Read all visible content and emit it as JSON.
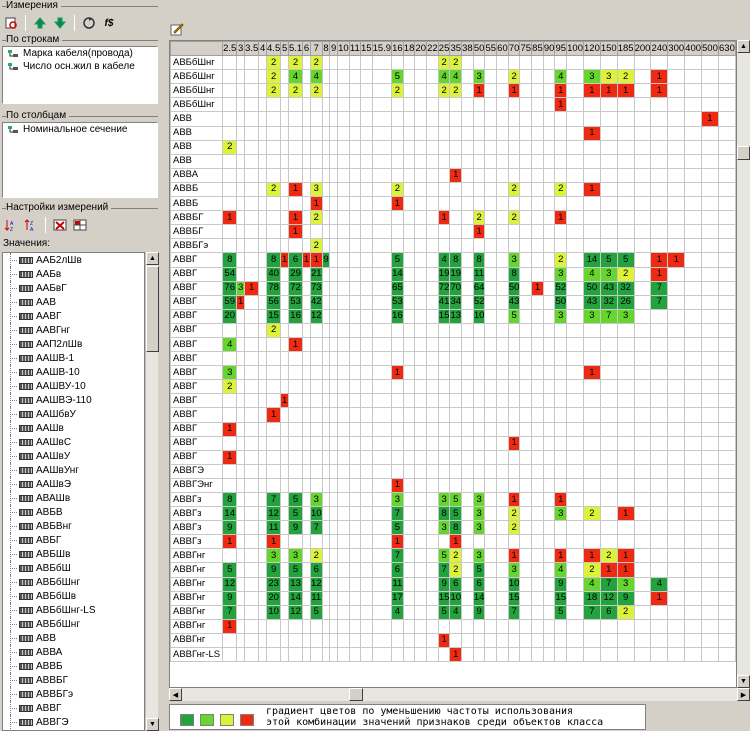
{
  "panels": {
    "dimensions": "Измерения",
    "rows": "По строкам",
    "columns": "По столбцам",
    "settings": "Настройки измерений",
    "values": "Значения:"
  },
  "rows_items": [
    "Марка кабеля(провода)",
    "Число осн.жил в кабеле"
  ],
  "columns_items": [
    "Номинальное сечение"
  ],
  "values_items": [
    "ААБ2лШв",
    "ААБв",
    "ААБвГ",
    "ААВ",
    "ААВГ",
    "ААВГнг",
    "ААП2лШв",
    "ААШВ-1",
    "ААШВ-10",
    "ААШВУ-10",
    "ААШВЭ-110",
    "ААШбвУ",
    "ААШв",
    "ААШвС",
    "ААШвУ",
    "ААШвУнг",
    "ААШвЭ",
    "АВАШв",
    "АВБВ",
    "АВБВнг",
    "АВБГ",
    "АВБШв",
    "АВБбШ",
    "АВБбШнг",
    "АВБбШв",
    "АВБбШнг-LS",
    "АВБбШнг",
    "АВВ",
    "АВВА",
    "АВВБ",
    "АВВБГ",
    "АВВБГэ",
    "АВВГ",
    "АВВГЭ"
  ],
  "grid": {
    "columns": [
      "2.5",
      "3",
      "3.5",
      "4",
      "4.5",
      "5",
      "5.1",
      "6",
      "7",
      "8",
      "9",
      "10",
      "11",
      "15",
      "15.9",
      "16",
      "18",
      "20",
      "22",
      "25",
      "35",
      "38",
      "50",
      "55",
      "60",
      "70",
      "75",
      "85",
      "90",
      "95",
      "100",
      "120",
      "150",
      "185",
      "200",
      "240",
      "300",
      "400",
      "500",
      "630"
    ],
    "rows": [
      {
        "label": "АВБбШнг",
        "cells": {
          "4": "2:y",
          "6": "2:y",
          "8": "2:y",
          "19": "2:y",
          "20": "2:y"
        }
      },
      {
        "label": "АВБбШнг",
        "cells": {
          "4": "2:y",
          "6": "4:l",
          "8": "4:l",
          "15": "5:l",
          "19": "4:l",
          "20": "4:l",
          "22": "3:l",
          "25": "2:y",
          "29": "4:l",
          "31": "3:l",
          "32": "3:y",
          "33": "2:y",
          "35": "1:r"
        }
      },
      {
        "label": "АВБбШнг",
        "cells": {
          "4": "2:y",
          "6": "2:y",
          "8": "2:y",
          "15": "2:y",
          "19": "2:y",
          "20": "2:y",
          "22": "1:r",
          "25": "1:r",
          "29": "1:r",
          "31": "1:r",
          "32": "1:r",
          "33": "1:r",
          "35": "1:r"
        }
      },
      {
        "label": "АВБбШнг",
        "cells": {
          "29": "1:r"
        }
      },
      {
        "label": "АВВ",
        "cells": {
          "38": "1:r"
        }
      },
      {
        "label": "АВВ",
        "cells": {
          "31": "1:r"
        }
      },
      {
        "label": "АВВ",
        "cells": {
          "0": "2:y"
        }
      },
      {
        "label": "АВВ",
        "cells": {}
      },
      {
        "label": "АВВА",
        "cells": {
          "20": "1:r"
        }
      },
      {
        "label": "АВВБ",
        "cells": {
          "4": "2:y",
          "6": "1:r",
          "8": "3:y",
          "15": "2:y",
          "25": "2:y",
          "29": "2:y",
          "31": "1:r"
        }
      },
      {
        "label": "АВВБ",
        "cells": {
          "8": "1:r",
          "15": "1:r"
        }
      },
      {
        "label": "АВВБГ",
        "cells": {
          "0": "1:r",
          "6": "1:r",
          "8": "2:y",
          "19": "1:r",
          "22": "2:y",
          "25": "2:y",
          "29": "1:r"
        }
      },
      {
        "label": "АВВБГ",
        "cells": {
          "6": "1:r",
          "22": "1:r"
        }
      },
      {
        "label": "АВВБГэ",
        "cells": {
          "8": "2:y"
        }
      },
      {
        "label": "АВВГ",
        "cells": {
          "0": "8:g",
          "4": "8:g",
          "5": "1:r",
          "6": "6:g",
          "7": "1:r",
          "8": "1:r",
          "9": "9:g",
          "15": "5:g",
          "19": "4:g",
          "20": "8:g",
          "22": "8:g",
          "25": "3:l",
          "29": "2:y",
          "31": "14:g",
          "32": "5:g",
          "33": "5:g",
          "35": "1:r",
          "36": "1:r"
        }
      },
      {
        "label": "АВВГ",
        "cells": {
          "0": "54:g",
          "4": "40:g",
          "6": "29:g",
          "8": "21:g",
          "15": "14:g",
          "19": "19:g",
          "20": "19:g",
          "22": "11:g",
          "25": "8:g",
          "29": "3:l",
          "31": "4:l",
          "32": "3:l",
          "33": "2:y",
          "35": "1:r"
        }
      },
      {
        "label": "АВВГ",
        "cells": {
          "0": "76:g",
          "1": "3:l",
          "2": "1:r",
          "4": "78:g",
          "6": "72:g",
          "8": "73:g",
          "15": "65:g",
          "19": "72:g",
          "20": "70:g",
          "22": "64:g",
          "25": "50:g",
          "27": "1:r",
          "29": "52:g",
          "31": "50:g",
          "32": "43:g",
          "33": "32:g",
          "35": "7:g"
        }
      },
      {
        "label": "АВВГ",
        "cells": {
          "0": "59:g",
          "1": "1:r",
          "4": "56:g",
          "6": "53:g",
          "8": "42:g",
          "15": "53:g",
          "19": "41:g",
          "20": "34:g",
          "22": "52:g",
          "25": "43:g",
          "29": "50:g",
          "31": "43:g",
          "32": "32:g",
          "33": "26:g",
          "35": "7:g"
        }
      },
      {
        "label": "АВВГ",
        "cells": {
          "0": "20:g",
          "4": "15:g",
          "6": "16:g",
          "8": "12:g",
          "15": "16:g",
          "19": "15:g",
          "20": "13:g",
          "22": "10:g",
          "25": "5:l",
          "29": "3:l",
          "31": "3:l",
          "32": "7:l",
          "33": "3:l"
        }
      },
      {
        "label": "АВВГ",
        "cells": {
          "4": "2:y"
        }
      },
      {
        "label": "АВВГ",
        "cells": {
          "0": "4:l",
          "6": "1:r"
        }
      },
      {
        "label": "АВВГ",
        "cells": {}
      },
      {
        "label": "АВВГ",
        "cells": {
          "0": "3:l",
          "15": "1:r",
          "31": "1:r"
        }
      },
      {
        "label": "АВВГ",
        "cells": {
          "0": "2:y"
        }
      },
      {
        "label": "АВВГ",
        "cells": {
          "5": "1:r"
        }
      },
      {
        "label": "АВВГ",
        "cells": {
          "4": "1:r"
        }
      },
      {
        "label": "АВВГ",
        "cells": {
          "0": "1:r"
        }
      },
      {
        "label": "АВВГ",
        "cells": {
          "25": "1:r"
        }
      },
      {
        "label": "АВВГ",
        "cells": {
          "0": "1:r"
        }
      },
      {
        "label": "АВВГЭ",
        "cells": {}
      },
      {
        "label": "АВВГЭнг",
        "cells": {
          "15": "1:r"
        }
      },
      {
        "label": "АВВГз",
        "cells": {
          "0": "8:g",
          "4": "7:g",
          "6": "5:g",
          "8": "3:l",
          "15": "3:l",
          "19": "3:l",
          "20": "5:l",
          "22": "3:l",
          "25": "1:r",
          "29": "1:r"
        }
      },
      {
        "label": "АВВГз",
        "cells": {
          "0": "14:g",
          "4": "12:g",
          "6": "5:g",
          "8": "10:g",
          "15": "7:g",
          "19": "8:g",
          "20": "5:g",
          "22": "3:l",
          "25": "2:y",
          "29": "3:l",
          "31": "2:y",
          "33": "1:r"
        }
      },
      {
        "label": "АВВГз",
        "cells": {
          "0": "9:g",
          "4": "11:g",
          "6": "9:g",
          "8": "7:g",
          "15": "5:g",
          "19": "3:l",
          "20": "8:g",
          "22": "3:l",
          "25": "2:y"
        }
      },
      {
        "label": "АВВГз",
        "cells": {
          "0": "1:r",
          "4": "1:r",
          "15": "1:r",
          "20": "1:r"
        }
      },
      {
        "label": "АВВГнг",
        "cells": {
          "4": "3:l",
          "6": "3:l",
          "8": "2:y",
          "15": "7:g",
          "19": "5:l",
          "20": "2:y",
          "22": "3:l",
          "25": "1:r",
          "29": "1:r",
          "31": "1:r",
          "32": "2:y",
          "33": "1:r"
        }
      },
      {
        "label": "АВВГнг",
        "cells": {
          "0": "5:g",
          "4": "9:g",
          "6": "5:g",
          "8": "6:g",
          "15": "6:g",
          "19": "7:g",
          "20": "2:y",
          "22": "5:g",
          "25": "3:l",
          "29": "4:l",
          "31": "2:y",
          "32": "1:r",
          "33": "1:r"
        }
      },
      {
        "label": "АВВГнг",
        "cells": {
          "0": "12:g",
          "4": "23:g",
          "6": "13:g",
          "8": "12:g",
          "15": "11:g",
          "19": "9:g",
          "20": "6:g",
          "22": "6:g",
          "25": "10:g",
          "29": "9:g",
          "31": "4:l",
          "32": "7:g",
          "33": "3:l",
          "35": "4:g"
        }
      },
      {
        "label": "АВВГнг",
        "cells": {
          "0": "9:g",
          "4": "20:g",
          "6": "14:g",
          "8": "11:g",
          "15": "17:g",
          "19": "15:g",
          "20": "10:g",
          "22": "14:g",
          "25": "15:g",
          "29": "15:g",
          "31": "18:g",
          "32": "12:g",
          "33": "9:g",
          "35": "1:r"
        }
      },
      {
        "label": "АВВГнг",
        "cells": {
          "0": "7:g",
          "4": "10:g",
          "6": "12:g",
          "8": "5:g",
          "15": "4:g",
          "19": "5:g",
          "20": "4:g",
          "22": "9:g",
          "25": "7:g",
          "29": "5:g",
          "31": "7:g",
          "32": "6:g",
          "33": "2:y"
        }
      },
      {
        "label": "АВВГнг",
        "cells": {
          "0": "1:r"
        }
      },
      {
        "label": "АВВГнг",
        "cells": {
          "19": "1:r"
        }
      },
      {
        "label": "АВВГнг-LS",
        "cells": {
          "20": "1:r"
        }
      }
    ]
  },
  "legend": {
    "line1": "градиент цветов по уменьшению частоты использования",
    "line2": "этой комбинации значений признаков среди объектов класса",
    "colors": [
      "#22a33d",
      "#66d62e",
      "#ddf23a",
      "#ee2b12"
    ]
  }
}
